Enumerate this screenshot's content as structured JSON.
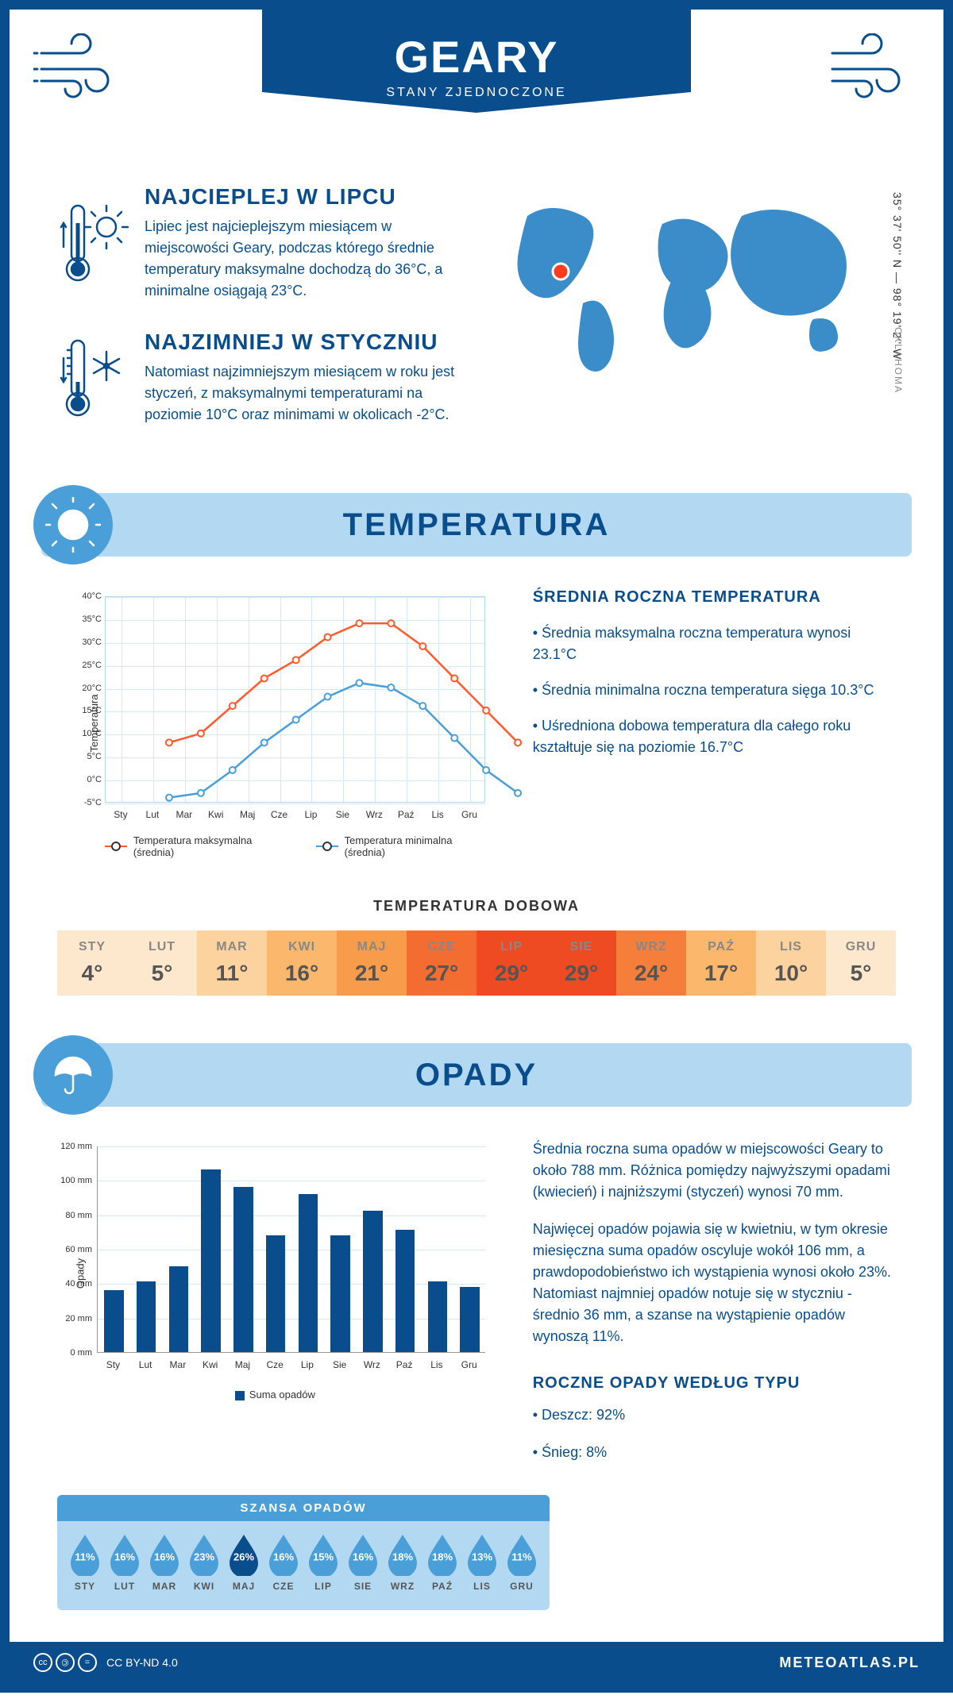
{
  "header": {
    "title": "GEARY",
    "subtitle": "STANY ZJEDNOCZONE"
  },
  "location": {
    "coords": "35° 37' 50'' N — 98° 19' 2'' W",
    "region": "OKLAHOMA",
    "marker_color": "#ff3b1f"
  },
  "intro": {
    "hot": {
      "title": "NAJCIEPLEJ W LIPCU",
      "text": "Lipiec jest najcieplejszym miesiącem w miejscowości Geary, podczas którego średnie temperatury maksymalne dochodzą do 36°C, a minimalne osiągają 23°C."
    },
    "cold": {
      "title": "NAJZIMNIEJ W STYCZNIU",
      "text": "Natomiast najzimniejszym miesiącem w roku jest styczeń, z maksymalnymi temperaturami na poziomie 10°C oraz minimami w okolicach -2°C."
    }
  },
  "colors": {
    "primary": "#0a4d8c",
    "light_blue": "#b3d9f2",
    "mid_blue": "#4a9fd8",
    "max_line": "#ff5a2b",
    "min_line": "#4a9fd8"
  },
  "temperature": {
    "section_title": "TEMPERATURA",
    "chart": {
      "type": "line",
      "ylabel": "Temperatura",
      "months": [
        "Sty",
        "Lut",
        "Mar",
        "Kwi",
        "Maj",
        "Cze",
        "Lip",
        "Sie",
        "Wrz",
        "Paź",
        "Lis",
        "Gru"
      ],
      "yticks": [
        -5,
        0,
        5,
        10,
        15,
        20,
        25,
        30,
        35,
        40
      ],
      "ytick_labels": [
        "-5°C",
        "0°C",
        "5°C",
        "10°C",
        "15°C",
        "20°C",
        "25°C",
        "30°C",
        "35°C",
        "40°C"
      ],
      "ylim": [
        -5,
        40
      ],
      "series": [
        {
          "name": "Temperatura maksymalna (średnia)",
          "color": "#ff5a2b",
          "values": [
            10,
            12,
            18,
            24,
            28,
            33,
            36,
            36,
            31,
            24,
            17,
            10
          ]
        },
        {
          "name": "Temperatura minimalna (średnia)",
          "color": "#4a9fd8",
          "values": [
            -2,
            -1,
            4,
            10,
            15,
            20,
            23,
            22,
            18,
            11,
            4,
            -1
          ]
        }
      ]
    },
    "sidebar": {
      "title": "ŚREDNIA ROCZNA TEMPERATURA",
      "bullets": [
        "• Średnia maksymalna roczna temperatura wynosi 23.1°C",
        "• Średnia minimalna roczna temperatura sięga 10.3°C",
        "• Uśredniona dobowa temperatura dla całego roku kształtuje się na poziomie 16.7°C"
      ]
    },
    "daily": {
      "title": "TEMPERATURA DOBOWA",
      "months": [
        "STY",
        "LUT",
        "MAR",
        "KWI",
        "MAJ",
        "CZE",
        "LIP",
        "SIE",
        "WRZ",
        "PAŹ",
        "LIS",
        "GRU"
      ],
      "values": [
        "4°",
        "5°",
        "11°",
        "16°",
        "21°",
        "27°",
        "29°",
        "29°",
        "24°",
        "17°",
        "10°",
        "5°"
      ],
      "bg_colors": [
        "#fde8cd",
        "#fde8cd",
        "#fcd39e",
        "#fbb76b",
        "#f89b4a",
        "#f26d2f",
        "#ee4b23",
        "#ee4b23",
        "#f57e3a",
        "#fbb76b",
        "#fcd39e",
        "#fde8cd"
      ]
    }
  },
  "precipitation": {
    "section_title": "OPADY",
    "chart": {
      "type": "bar",
      "ylabel": "Opady",
      "months": [
        "Sty",
        "Lut",
        "Mar",
        "Kwi",
        "Maj",
        "Cze",
        "Lip",
        "Sie",
        "Wrz",
        "Paź",
        "Lis",
        "Gru"
      ],
      "yticks": [
        0,
        20,
        40,
        60,
        80,
        100,
        120
      ],
      "ytick_labels": [
        "0 mm",
        "20 mm",
        "40 mm",
        "60 mm",
        "80 mm",
        "100 mm",
        "120 mm"
      ],
      "ylim": [
        0,
        120
      ],
      "values": [
        36,
        41,
        50,
        106,
        96,
        68,
        92,
        68,
        82,
        71,
        41,
        38
      ],
      "bar_color": "#0a4d8c",
      "legend": "Suma opadów"
    },
    "sidebar": {
      "p1": "Średnia roczna suma opadów w miejscowości Geary to około 788 mm. Różnica pomiędzy najwyższymi opadami (kwiecień) i najniższymi (styczeń) wynosi 70 mm.",
      "p2": "Najwięcej opadów pojawia się w kwietniu, w tym okresie miesięczna suma opadów oscyluje wokół 106 mm, a prawdopodobieństwo ich wystąpienia wynosi około 23%. Natomiast najmniej opadów notuje się w styczniu - średnio 36 mm, a szanse na wystąpienie opadów wynoszą 11%.",
      "by_type_title": "ROCZNE OPADY WEDŁUG TYPU",
      "by_type": [
        "• Deszcz: 92%",
        "• Śnieg: 8%"
      ]
    },
    "chance": {
      "title": "SZANSA OPADÓW",
      "months": [
        "STY",
        "LUT",
        "MAR",
        "KWI",
        "MAJ",
        "CZE",
        "LIP",
        "SIE",
        "WRZ",
        "PAŹ",
        "LIS",
        "GRU"
      ],
      "values": [
        "11%",
        "16%",
        "16%",
        "23%",
        "26%",
        "16%",
        "15%",
        "16%",
        "18%",
        "18%",
        "13%",
        "11%"
      ],
      "drop_color": "#4a9fd8",
      "drop_max_color": "#0a4d8c",
      "max_index": 4
    }
  },
  "footer": {
    "license": "CC BY-ND 4.0",
    "site": "METEOATLAS.PL"
  }
}
